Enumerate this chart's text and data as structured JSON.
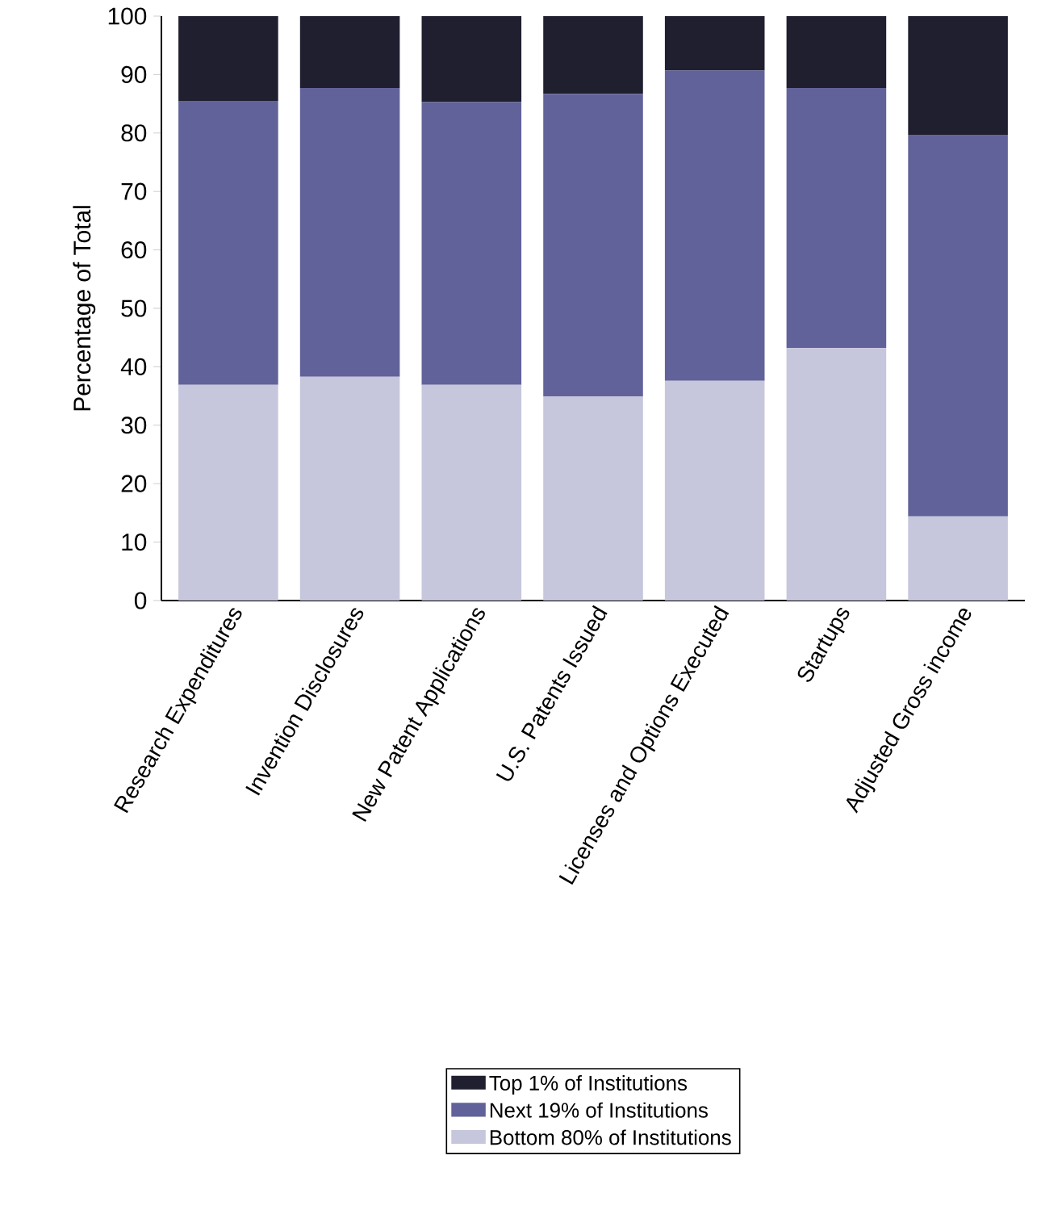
{
  "chart_data": {
    "type": "bar",
    "stacked": true,
    "ylabel": "Percentage of Total",
    "categories": [
      "Research Expenditures",
      "Invention Disclosures",
      "New Patent Applications",
      "U.S. Patents Issued",
      "Licenses and Options Executed",
      "Startups",
      "Adjusted Gross income"
    ],
    "series": [
      {
        "name": "Bottom 80% of Institutions",
        "color": "#c6c6dc",
        "values": [
          36.9,
          38.3,
          36.9,
          34.9,
          37.6,
          43.2,
          14.4
        ]
      },
      {
        "name": "Next 19% of Institutions",
        "color": "#62629a",
        "values": [
          48.6,
          49.4,
          48.4,
          51.8,
          53.1,
          44.5,
          65.3
        ]
      },
      {
        "name": "Top 1% of Institutions",
        "color": "#201f30",
        "values": [
          14.5,
          12.3,
          14.7,
          13.3,
          9.3,
          12.3,
          20.3
        ]
      }
    ],
    "ylim": [
      0,
      100
    ],
    "yticks": [
      0,
      10,
      20,
      30,
      40,
      50,
      60,
      70,
      80,
      90,
      100
    ],
    "grid": false,
    "legend": "bottom"
  }
}
